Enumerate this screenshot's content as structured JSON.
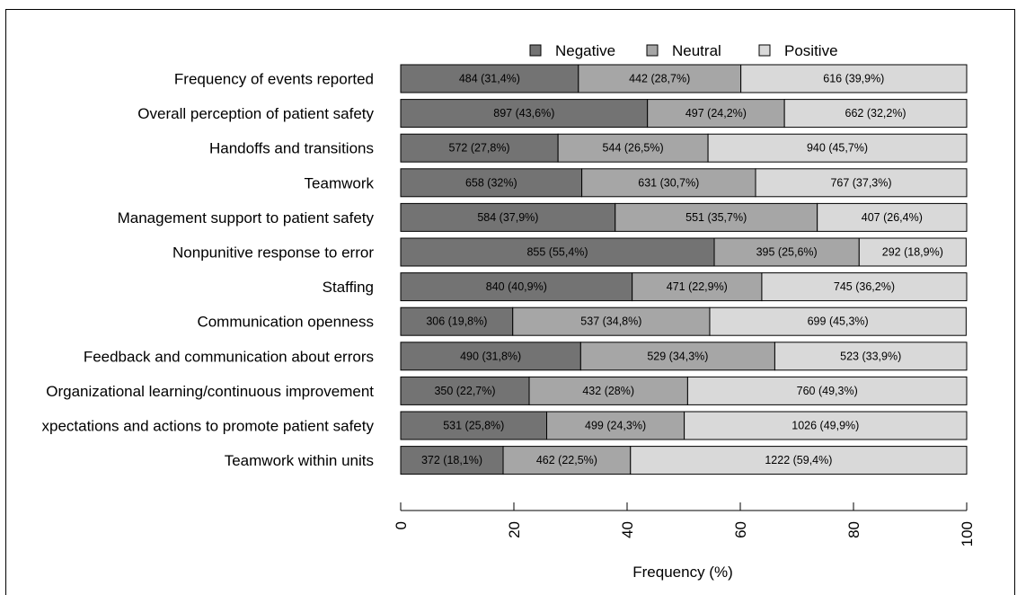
{
  "chart_data": {
    "type": "bar",
    "orientation": "horizontal",
    "stacked": true,
    "categories": [
      "Frequency of events reported",
      "Overall perception of patient safety",
      "Handoffs and transitions",
      "Teamwork",
      "Management support to patient safety",
      "Nonpunitive response to error",
      "Staffing",
      "Communication openness",
      "Feedback and communication about errors",
      "Organizational learning/continuous improvement",
      "xpectations and actions to promote patient safety",
      "Teamwork within units"
    ],
    "series": [
      {
        "name": "Negative",
        "color": "#737373",
        "values": [
          31.4,
          43.6,
          27.8,
          32,
          37.9,
          55.4,
          40.9,
          19.8,
          31.8,
          22.7,
          25.8,
          18.1
        ],
        "labels": [
          "484 (31,4%)",
          "897 (43,6%)",
          "572 (27,8%)",
          "658 (32%)",
          "584 (37,9%)",
          "855 (55,4%)",
          "840 (40,9%)",
          "306 (19,8%)",
          "490 (31,8%)",
          "350 (22,7%)",
          "531 (25,8%)",
          "372 (18,1%)"
        ]
      },
      {
        "name": "Neutral",
        "color": "#a6a6a6",
        "values": [
          28.7,
          24.2,
          26.5,
          30.7,
          35.7,
          25.6,
          22.9,
          34.8,
          34.3,
          28,
          24.3,
          22.5
        ],
        "labels": [
          "442 (28,7%)",
          "497 (24,2%)",
          "544 (26,5%)",
          "631 (30,7%)",
          "551 (35,7%)",
          "395 (25,6%)",
          "471 (22,9%)",
          "537 (34,8%)",
          "529 (34,3%)",
          "432 (28%)",
          "499 (24,3%)",
          "462 (22,5%)"
        ]
      },
      {
        "name": "Positive",
        "color": "#d9d9d9",
        "values": [
          39.9,
          32.2,
          45.7,
          37.3,
          26.4,
          18.9,
          36.2,
          45.3,
          33.9,
          49.3,
          49.9,
          59.4
        ],
        "labels": [
          "616 (39,9%)",
          "662 (32,2%)",
          "940 (45,7%)",
          "767 (37,3%)",
          "407 (26,4%)",
          "292 (18,9%)",
          "745 (36,2%)",
          "699 (45,3%)",
          "523 (33,9%)",
          "760 (49,3%)",
          "1026 (49,9%)",
          "1222 (59,4%)"
        ]
      }
    ],
    "xlabel": "Frequency (%)",
    "ylabel": "",
    "xlim": [
      0,
      100
    ],
    "xticks": [
      "0",
      "20",
      "40",
      "60",
      "80",
      "100"
    ],
    "legend_position": "top",
    "grid": false
  }
}
